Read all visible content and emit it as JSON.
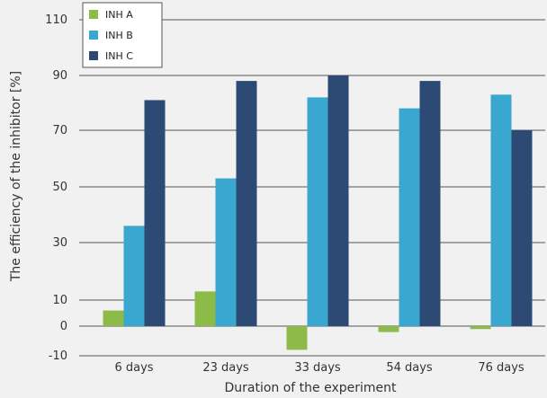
{
  "chart_data": {
    "type": "bar",
    "title": "",
    "xlabel": "Duration of the experiment",
    "ylabel": "The efficiency of the inhibitor [%]",
    "categories": [
      "6 days",
      "23 days",
      "33 days",
      "54 days",
      "76 days"
    ],
    "series": [
      {
        "name": "INH A",
        "color": "#8dbb48",
        "values": [
          6,
          13,
          -8,
          -2,
          -1
        ]
      },
      {
        "name": "INH B",
        "color": "#39a7cf",
        "values": [
          36,
          53,
          82,
          78,
          83
        ]
      },
      {
        "name": "INH C",
        "color": "#2c4a73",
        "values": [
          81,
          88,
          90,
          88,
          70
        ]
      }
    ],
    "ylim": [
      -10,
      110
    ],
    "yticks": [
      "110",
      "90",
      "70",
      "50",
      "30",
      "10",
      "0",
      "-10"
    ],
    "grid": true,
    "legend_position": "top-left"
  }
}
